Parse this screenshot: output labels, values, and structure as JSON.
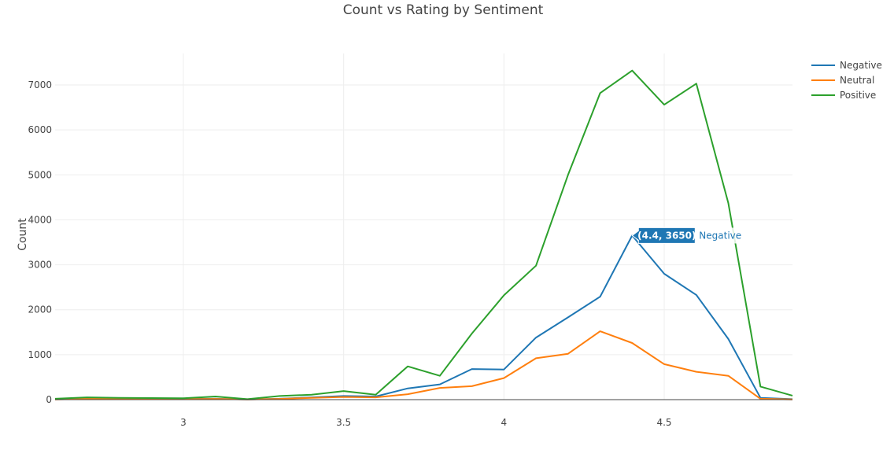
{
  "chart_data": {
    "type": "line",
    "title": "Count vs Rating by Sentiment",
    "xlabel": "",
    "ylabel": "Count",
    "xlim": [
      2.6,
      4.9
    ],
    "ylim": [
      0,
      7700
    ],
    "x_ticks": [
      3,
      3.5,
      4,
      4.5
    ],
    "y_ticks": [
      0,
      1000,
      2000,
      3000,
      4000,
      5000,
      6000,
      7000
    ],
    "grid": true,
    "legend_position": "top-right",
    "x": [
      2.6,
      2.7,
      2.8,
      2.9,
      3.0,
      3.1,
      3.2,
      3.3,
      3.4,
      3.5,
      3.6,
      3.7,
      3.8,
      3.9,
      4.0,
      4.1,
      4.2,
      4.3,
      4.4,
      4.5,
      4.6,
      4.7,
      4.8,
      4.9
    ],
    "series": [
      {
        "name": "Negative",
        "color": "#1f77b4",
        "values": [
          10,
          30,
          25,
          20,
          15,
          20,
          5,
          20,
          50,
          80,
          70,
          250,
          340,
          680,
          670,
          1380,
          1830,
          2290,
          3650,
          2800,
          2330,
          1350,
          40,
          10
        ]
      },
      {
        "name": "Neutral",
        "color": "#ff7f0e",
        "values": [
          5,
          20,
          15,
          15,
          10,
          15,
          5,
          15,
          40,
          60,
          50,
          120,
          260,
          300,
          480,
          920,
          1020,
          1520,
          1260,
          790,
          620,
          530,
          20,
          5
        ]
      },
      {
        "name": "Positive",
        "color": "#2ca02c",
        "values": [
          20,
          50,
          40,
          35,
          30,
          70,
          10,
          80,
          110,
          190,
          110,
          740,
          530,
          1470,
          2320,
          2980,
          5000,
          6820,
          7320,
          6560,
          7030,
          4370,
          290,
          90
        ]
      }
    ],
    "hover": {
      "series": "Negative",
      "x": 4.4,
      "y": 3650,
      "label": "(4.4, 3650)"
    }
  }
}
